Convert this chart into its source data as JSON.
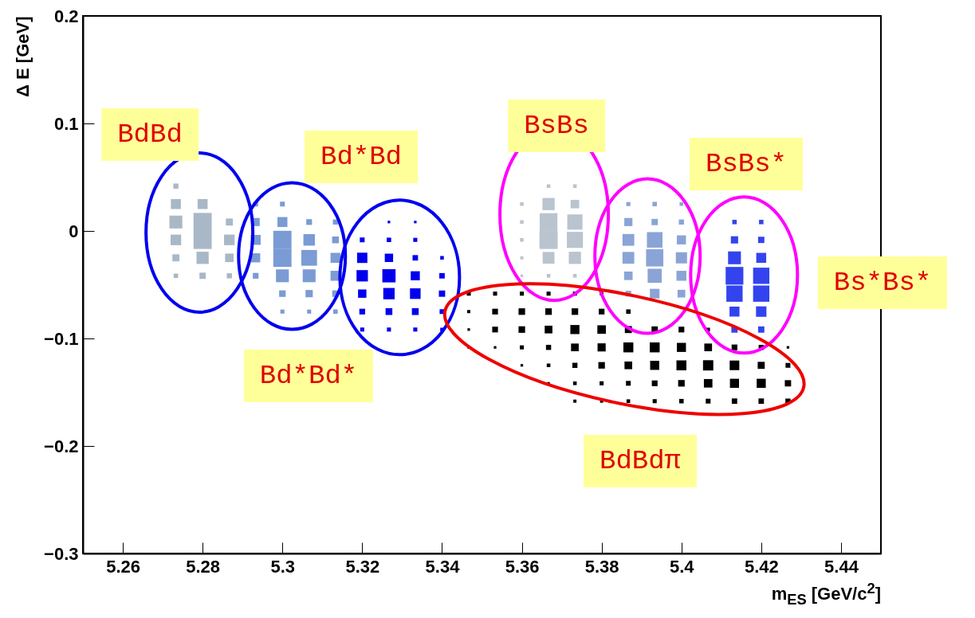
{
  "chart_data": {
    "type": "bubble",
    "marker": "square",
    "xlabel": "m$_{ES}$ [GeV/c$^{2}$]",
    "ylabel": "Δ E [GeV]",
    "xlim": [
      5.25,
      5.45
    ],
    "ylim": [
      -0.3,
      0.2
    ],
    "xticks": [
      5.26,
      5.28,
      5.3,
      5.32,
      5.34,
      5.36,
      5.38,
      5.4,
      5.42,
      5.44
    ],
    "yticks": [
      -0.3,
      -0.2,
      -0.1,
      0,
      0.1,
      0.2
    ],
    "series": [
      {
        "color": "#a9b8c6",
        "x": [
          5.2733,
          5.2733,
          5.28,
          5.2733,
          5.28,
          5.28,
          5.2733,
          5.2733,
          5.28,
          5.2867,
          5.2867,
          5.2867,
          5.28,
          5.2733,
          5.2867
        ],
        "values": [
          0.0417,
          0.025,
          0.025,
          0.0083,
          0.0083,
          -0.0083,
          -0.0083,
          -0.025,
          -0.025,
          0.0083,
          -0.0083,
          -0.025,
          -0.0417,
          -0.0417,
          -0.0417
        ],
        "sizes": [
          0.08,
          0.3,
          0.3,
          0.5,
          1,
          1,
          0.34,
          0.15,
          0.45,
          0.15,
          0.34,
          0.22,
          0.12,
          0.06,
          0.08
        ]
      },
      {
        "color": "#7b9bd4",
        "x": [
          5.2933,
          5.3,
          5.3067,
          5.3133,
          5.2933,
          5.3,
          5.3067,
          5.3133,
          5.2933,
          5.3,
          5.3067,
          5.3133,
          5.2933,
          5.3,
          5.3067,
          5.3133,
          5.3,
          5.3067,
          5.3133,
          5.3,
          5.3067,
          5.3133,
          5.2933,
          5.3
        ],
        "values": [
          0.0083,
          0.0083,
          0.0083,
          0.0083,
          -0.0083,
          -0.0083,
          -0.0083,
          -0.0083,
          -0.025,
          -0.025,
          -0.025,
          -0.025,
          -0.0417,
          -0.0417,
          -0.0417,
          -0.0417,
          -0.0583,
          -0.0583,
          -0.0583,
          -0.075,
          -0.075,
          -0.075,
          0.025,
          0.025
        ],
        "sizes": [
          0.2,
          0.3,
          0.1,
          0.08,
          0.3,
          1,
          0.4,
          0.14,
          0.25,
          1,
          0.75,
          0.3,
          0.1,
          0.5,
          0.5,
          0.3,
          0.13,
          0.16,
          0.13,
          0.05,
          0.05,
          0.06,
          0.07,
          0.07
        ]
      },
      {
        "color": "#0000ee",
        "x": [
          5.32,
          5.3267,
          5.3333,
          5.32,
          5.3267,
          5.3333,
          5.34,
          5.32,
          5.3267,
          5.3333,
          5.34,
          5.32,
          5.3267,
          5.3333,
          5.34,
          5.32,
          5.3267,
          5.3333,
          5.34,
          5.32,
          5.3267,
          5.3333,
          5.34,
          5.3267,
          5.3333
        ],
        "values": [
          -0.0083,
          -0.0083,
          -0.0083,
          -0.025,
          -0.025,
          -0.025,
          -0.025,
          -0.0417,
          -0.0417,
          -0.0417,
          -0.0417,
          -0.0583,
          -0.0583,
          -0.0583,
          -0.0583,
          -0.075,
          -0.075,
          -0.075,
          -0.075,
          -0.0917,
          -0.0917,
          -0.0917,
          -0.0917,
          0.0083,
          0.0083
        ],
        "sizes": [
          0.07,
          0.06,
          0.05,
          0.32,
          0.21,
          0.09,
          0.04,
          0.39,
          0.53,
          0.25,
          0.09,
          0.21,
          0.39,
          0.34,
          0.12,
          0.1,
          0.14,
          0.14,
          0.07,
          0.05,
          0.05,
          0.05,
          0.04,
          0.02,
          0.02
        ]
      },
      {
        "color": "#000000",
        "x": [
          5.3467,
          5.3533,
          5.36,
          5.3667,
          5.3733,
          5.38,
          5.3467,
          5.3533,
          5.36,
          5.3667,
          5.3733,
          5.38,
          5.3867,
          5.3467,
          5.3533,
          5.36,
          5.3667,
          5.3733,
          5.38,
          5.3867,
          5.3933,
          5.4,
          5.4067,
          5.3467,
          5.3533,
          5.36,
          5.3667,
          5.3733,
          5.38,
          5.3867,
          5.3933,
          5.4,
          5.4067,
          5.4133,
          5.42,
          5.4267,
          5.36,
          5.3667,
          5.3733,
          5.38,
          5.3867,
          5.3933,
          5.4,
          5.4067,
          5.4133,
          5.42,
          5.4267,
          5.3667,
          5.3733,
          5.38,
          5.3867,
          5.3933,
          5.4,
          5.4067,
          5.4133,
          5.42,
          5.4267,
          5.3733,
          5.38,
          5.3867,
          5.3933,
          5.4,
          5.4067,
          5.4133,
          5.42,
          5.4267
        ],
        "values": [
          -0.0583,
          -0.0583,
          -0.0583,
          -0.0583,
          -0.0583,
          -0.0583,
          -0.075,
          -0.075,
          -0.075,
          -0.075,
          -0.075,
          -0.075,
          -0.075,
          -0.0917,
          -0.0917,
          -0.0917,
          -0.0917,
          -0.0917,
          -0.0917,
          -0.0917,
          -0.0917,
          -0.0917,
          -0.0917,
          -0.1083,
          -0.1083,
          -0.1083,
          -0.1083,
          -0.1083,
          -0.1083,
          -0.1083,
          -0.1083,
          -0.1083,
          -0.1083,
          -0.1083,
          -0.1083,
          -0.1083,
          -0.125,
          -0.125,
          -0.125,
          -0.125,
          -0.125,
          -0.125,
          -0.125,
          -0.125,
          -0.125,
          -0.125,
          -0.125,
          -0.1417,
          -0.1417,
          -0.1417,
          -0.1417,
          -0.1417,
          -0.1417,
          -0.1417,
          -0.1417,
          -0.1417,
          -0.1417,
          -0.1583,
          -0.1583,
          -0.1583,
          -0.1583,
          -0.1583,
          -0.1583,
          -0.1583,
          -0.1583,
          -0.1583
        ],
        "sizes": [
          0.05,
          0.05,
          0.05,
          0.05,
          0.05,
          0.04,
          0.03,
          0.1,
          0.13,
          0.13,
          0.13,
          0.1,
          0.06,
          0.02,
          0.1,
          0.13,
          0.18,
          0.25,
          0.22,
          0.15,
          0.12,
          0.1,
          0.04,
          0.02,
          0.02,
          0.05,
          0.08,
          0.18,
          0.2,
          0.3,
          0.3,
          0.25,
          0.18,
          0.1,
          0.08,
          0.02,
          0.02,
          0.04,
          0.08,
          0.13,
          0.18,
          0.25,
          0.3,
          0.32,
          0.28,
          0.15,
          0.07,
          0.02,
          0.04,
          0.05,
          0.07,
          0.1,
          0.13,
          0.22,
          0.25,
          0.25,
          0.12,
          0.03,
          0.03,
          0.04,
          0.05,
          0.06,
          0.07,
          0.09,
          0.09,
          0.08
        ]
      },
      {
        "color": "#b9c4cf",
        "x": [
          5.3667,
          5.3733,
          5.36,
          5.3667,
          5.3733,
          5.36,
          5.3667,
          5.3733,
          5.36,
          5.3667,
          5.3733,
          5.36,
          5.3667,
          5.3733,
          5.3667,
          5.3733,
          5.36
        ],
        "values": [
          0.0417,
          0.0417,
          0.025,
          0.025,
          0.025,
          0.0083,
          0.0083,
          0.0083,
          -0.0083,
          -0.0083,
          -0.0083,
          -0.025,
          -0.025,
          -0.025,
          -0.0417,
          -0.0417,
          -0.0417
        ],
        "sizes": [
          0.04,
          0.04,
          0.04,
          0.45,
          0.22,
          0.04,
          0.95,
          0.7,
          0.04,
          1,
          0.78,
          0.03,
          0.42,
          0.45,
          0.04,
          0.04,
          0.02
        ]
      },
      {
        "color": "#8aa4d6",
        "x": [
          5.3867,
          5.3933,
          5.4,
          5.3867,
          5.3933,
          5.4,
          5.3867,
          5.3933,
          5.4,
          5.3867,
          5.3933,
          5.4,
          5.3867,
          5.3933,
          5.4,
          5.3867,
          5.3933,
          5.4
        ],
        "values": [
          0.0083,
          0.0083,
          0.0083,
          -0.0083,
          -0.0083,
          -0.0083,
          -0.025,
          -0.025,
          -0.025,
          -0.0417,
          -0.0417,
          -0.0417,
          -0.0583,
          -0.0583,
          -0.0583,
          0.025,
          0.025,
          0.025
        ],
        "sizes": [
          0.2,
          0.12,
          0.08,
          0.42,
          0.73,
          0.25,
          0.42,
          0.9,
          0.38,
          0.22,
          0.6,
          0.3,
          0.1,
          0.28,
          0.18,
          0.05,
          0.06,
          0.04
        ]
      },
      {
        "color": "#3344ee",
        "x": [
          5.4133,
          5.42,
          5.4133,
          5.42,
          5.4133,
          5.42,
          5.4133,
          5.42,
          5.4133,
          5.42,
          5.4133,
          5.42,
          5.4133,
          5.42
        ],
        "values": [
          0.0083,
          0.0083,
          -0.0083,
          -0.0083,
          -0.025,
          -0.025,
          -0.0417,
          -0.0417,
          -0.0583,
          -0.0583,
          -0.075,
          -0.075,
          -0.0917,
          -0.0917
        ],
        "sizes": [
          0.06,
          0.06,
          0.16,
          0.12,
          0.5,
          0.3,
          0.95,
          0.8,
          0.8,
          0.8,
          0.3,
          0.33,
          0.12,
          0.12
        ]
      }
    ],
    "annotations": [
      "BdBd",
      "Bd*Bd",
      "Bd*Bd*",
      "BsBs",
      "BsBs*",
      "Bs*Bs*",
      "BdBdπ"
    ]
  }
}
